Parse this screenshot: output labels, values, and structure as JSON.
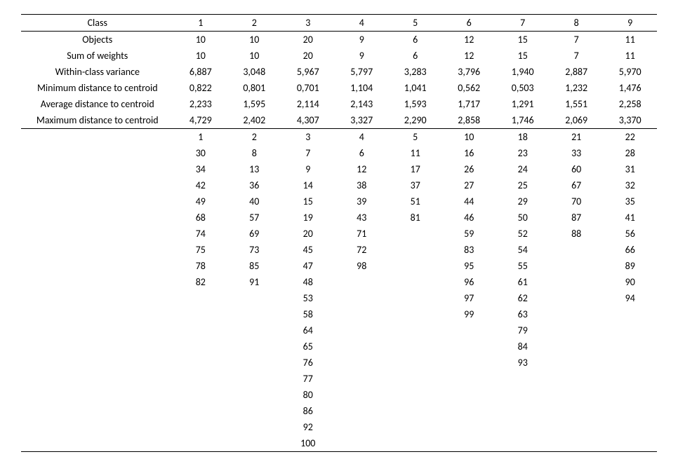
{
  "table": {
    "type": "table",
    "header_label": "Class",
    "class_numbers": [
      "1",
      "2",
      "3",
      "4",
      "5",
      "6",
      "7",
      "8",
      "9"
    ],
    "stat_rows": [
      {
        "label": "Objects",
        "values": [
          "10",
          "10",
          "20",
          "9",
          "6",
          "12",
          "15",
          "7",
          "11"
        ]
      },
      {
        "label": "Sum of weights",
        "values": [
          "10",
          "10",
          "20",
          "9",
          "6",
          "12",
          "15",
          "7",
          "11"
        ]
      },
      {
        "label": "Within-class variance",
        "values": [
          "6,887",
          "3,048",
          "5,967",
          "5,797",
          "3,283",
          "3,796",
          "1,940",
          "2,887",
          "5,970"
        ]
      },
      {
        "label": "Minimum distance to centroid",
        "values": [
          "0,822",
          "0,801",
          "0,701",
          "1,104",
          "1,041",
          "0,562",
          "0,503",
          "1,232",
          "1,476"
        ]
      },
      {
        "label": "Average distance to centroid",
        "values": [
          "2,233",
          "1,595",
          "2,114",
          "2,143",
          "1,593",
          "1,717",
          "1,291",
          "1,551",
          "2,258"
        ]
      },
      {
        "label": "Maximum distance to centroid",
        "values": [
          "4,729",
          "2,402",
          "4,307",
          "3,327",
          "2,290",
          "2,858",
          "1,746",
          "2,069",
          "3,370"
        ]
      }
    ],
    "member_columns": [
      [
        "1",
        "30",
        "34",
        "42",
        "49",
        "68",
        "74",
        "75",
        "78",
        "82"
      ],
      [
        "2",
        "8",
        "13",
        "36",
        "40",
        "57",
        "69",
        "73",
        "85",
        "91"
      ],
      [
        "3",
        "7",
        "9",
        "14",
        "15",
        "19",
        "20",
        "45",
        "47",
        "48",
        "53",
        "58",
        "64",
        "65",
        "76",
        "77",
        "80",
        "86",
        "92",
        "100"
      ],
      [
        "4",
        "6",
        "12",
        "38",
        "39",
        "43",
        "71",
        "72",
        "98"
      ],
      [
        "5",
        "11",
        "17",
        "37",
        "51",
        "81"
      ],
      [
        "10",
        "16",
        "26",
        "27",
        "44",
        "46",
        "59",
        "83",
        "95",
        "96",
        "97",
        "99"
      ],
      [
        "18",
        "23",
        "24",
        "25",
        "29",
        "50",
        "52",
        "54",
        "55",
        "61",
        "62",
        "63",
        "79",
        "84",
        "93"
      ],
      [
        "21",
        "33",
        "60",
        "67",
        "70",
        "87",
        "88"
      ],
      [
        "22",
        "28",
        "31",
        "32",
        "35",
        "41",
        "56",
        "66",
        "89",
        "90",
        "94"
      ]
    ],
    "max_members": 20,
    "background_color": "#ffffff",
    "text_color": "#000000",
    "font_family": "Calibri",
    "font_size_pt": 11
  }
}
